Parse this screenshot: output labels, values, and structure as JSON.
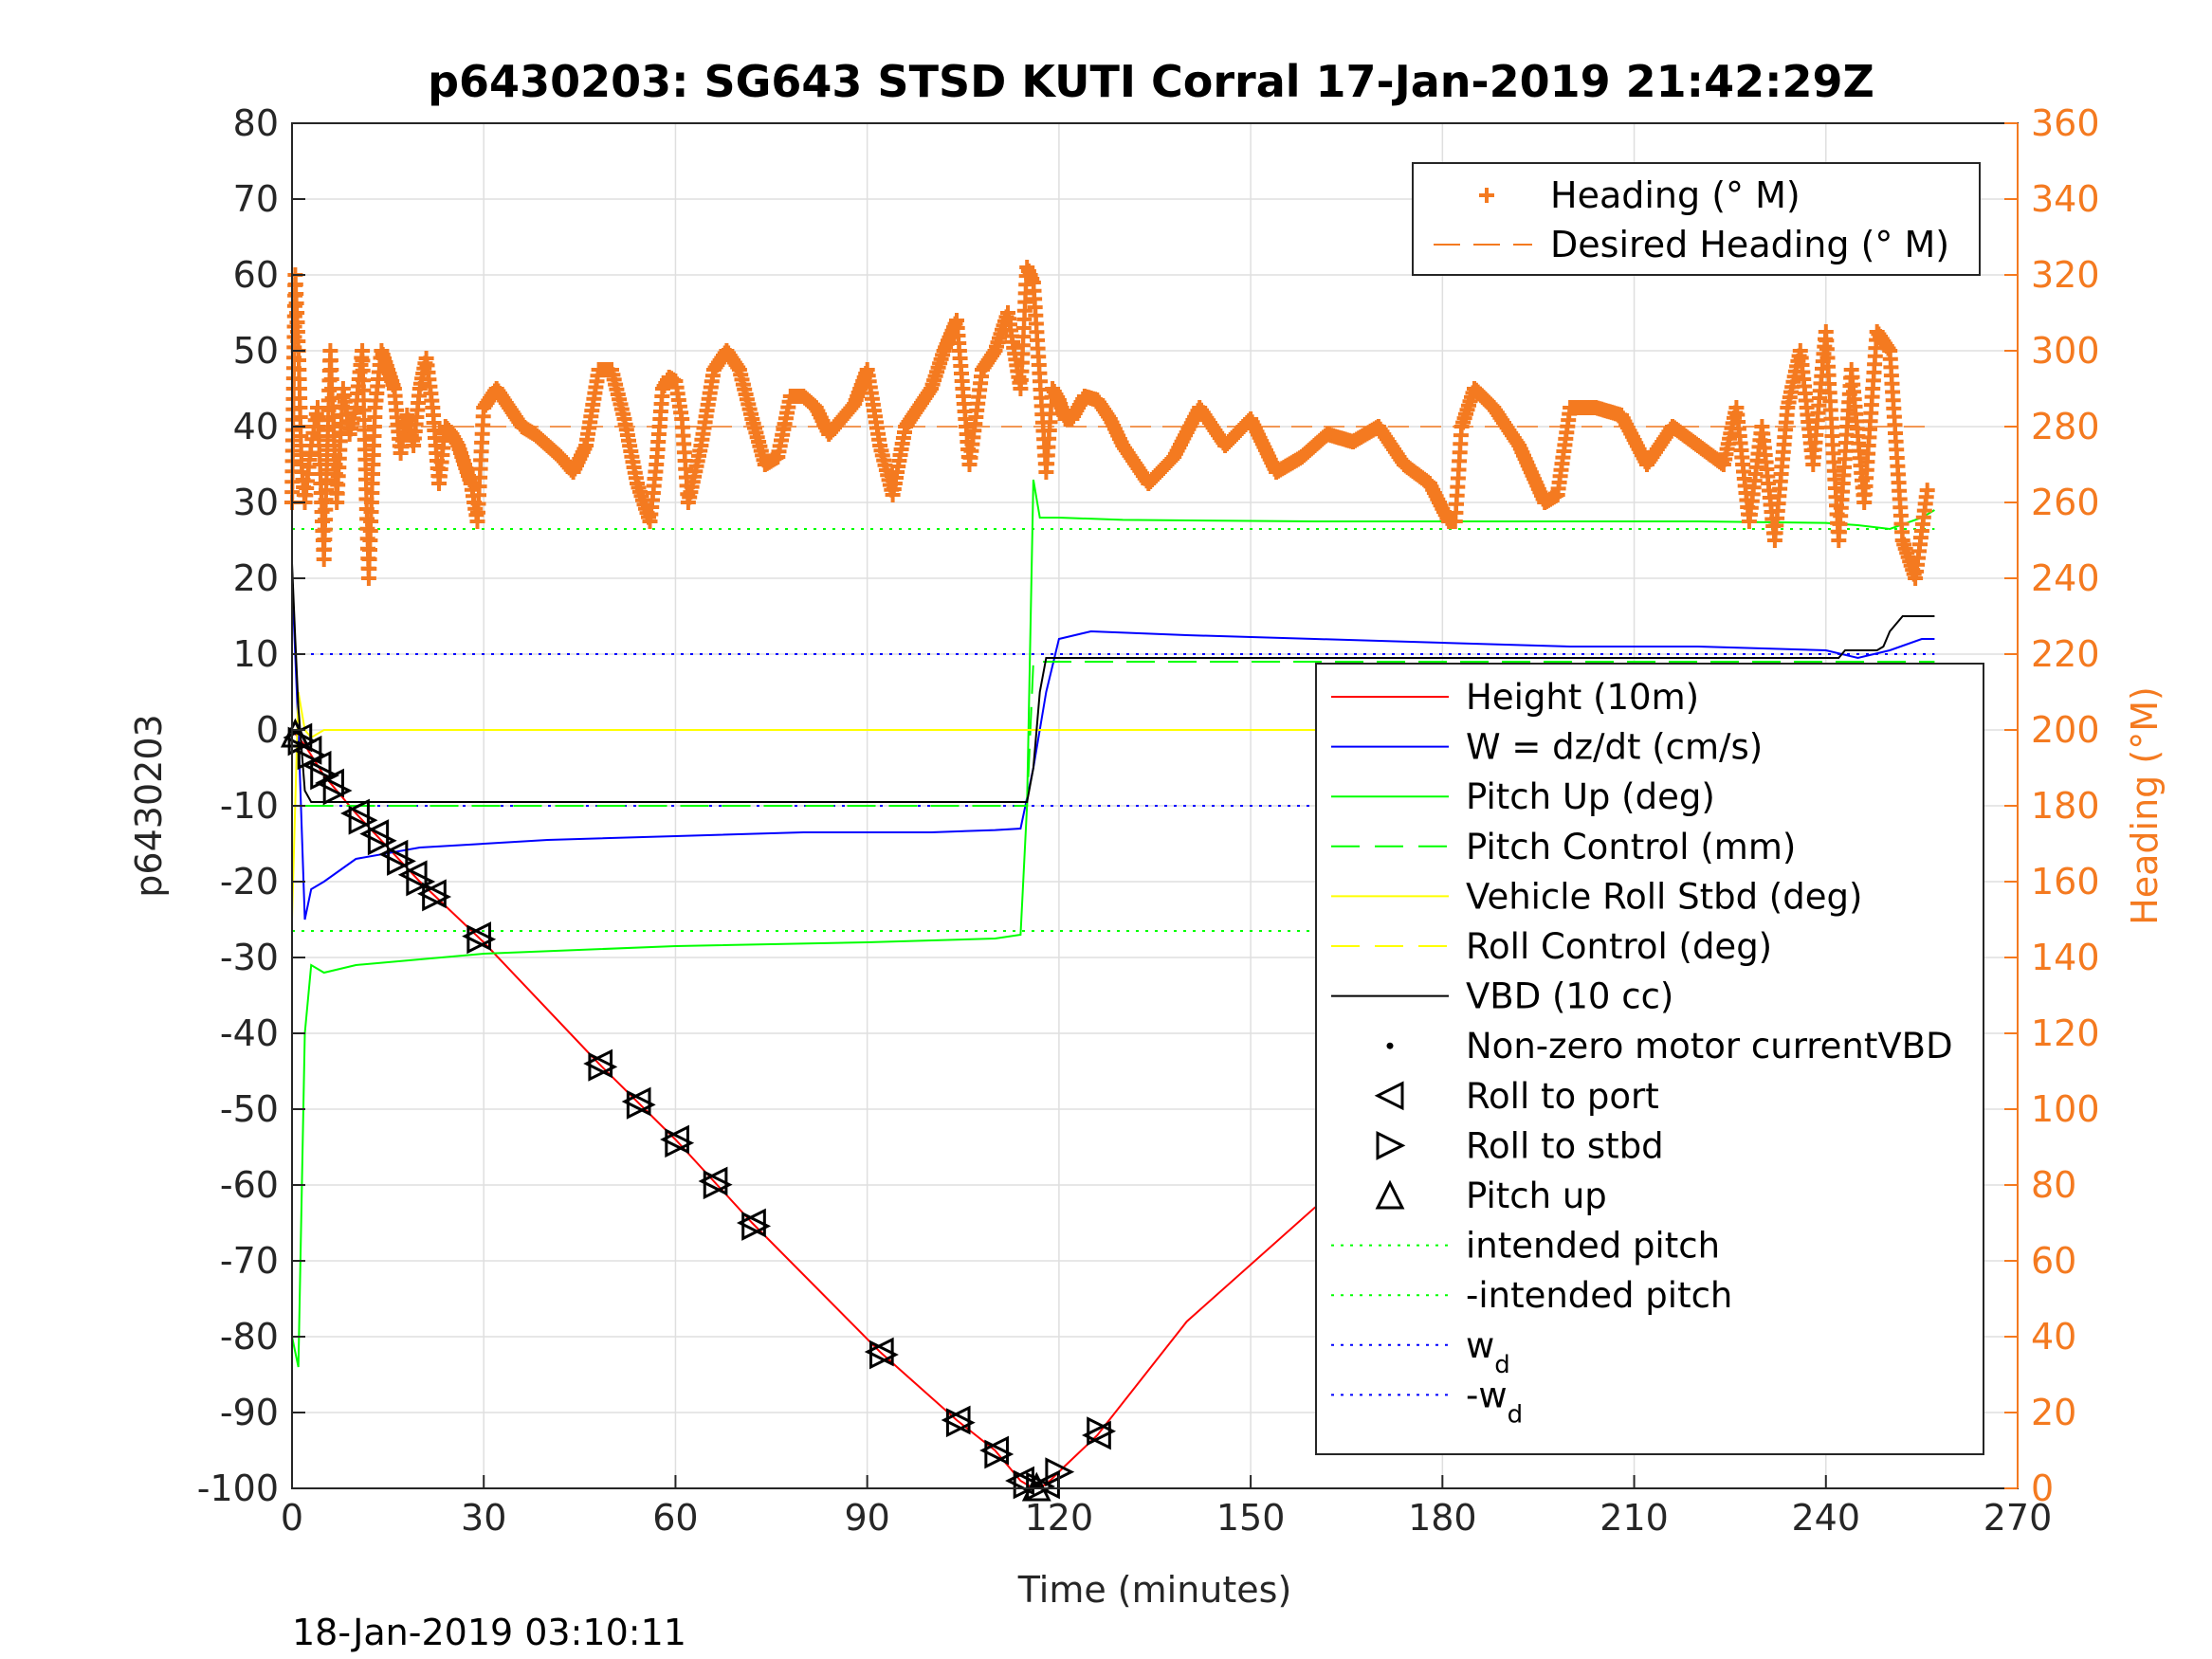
{
  "chart_data": {
    "type": "line",
    "title": "p6430203: SG643 STSD KUTI Corral 17-Jan-2019 21:42:29Z",
    "xlabel": "Time (minutes)",
    "ylabel": "p6430203",
    "ylabel_right": "Heading (°M)",
    "footer": "18-Jan-2019 03:10:11",
    "xlim": [
      0,
      270
    ],
    "ylim": [
      -100,
      80
    ],
    "ylim_right": [
      0,
      360
    ],
    "x_ticks": [
      0,
      30,
      60,
      90,
      120,
      150,
      180,
      210,
      240,
      270
    ],
    "y_ticks": [
      -100,
      -90,
      -80,
      -70,
      -60,
      -50,
      -40,
      -30,
      -20,
      -10,
      0,
      10,
      20,
      30,
      40,
      50,
      60,
      70,
      80
    ],
    "y_ticks_right": [
      0,
      20,
      40,
      60,
      80,
      100,
      120,
      140,
      160,
      180,
      200,
      220,
      240,
      260,
      280,
      300,
      320,
      340,
      360
    ],
    "grid": true,
    "legend_heading": {
      "placement": "top-right",
      "entries": [
        "Heading (° M)",
        "Desired Heading (° M)"
      ]
    },
    "legend_main": {
      "placement": "right",
      "entries": [
        {
          "label": "Height (10m)",
          "sub": "",
          "color": "#ff0000",
          "style": "solid"
        },
        {
          "label": "W = dz/dt (cm/s)",
          "sub": "",
          "color": "#0000ff",
          "style": "solid"
        },
        {
          "label": "Pitch Up (deg)",
          "sub": "",
          "color": "#00ff00",
          "style": "solid"
        },
        {
          "label": "Pitch Control (mm)",
          "sub": "",
          "color": "#00ff00",
          "style": "dashed"
        },
        {
          "label": "Vehicle Roll Stbd (deg)",
          "sub": "",
          "color": "#ffff00",
          "style": "solid"
        },
        {
          "label": "Roll Control (deg)",
          "sub": "",
          "color": "#ffff00",
          "style": "dashed"
        },
        {
          "label": "VBD (10 cc)",
          "sub": "",
          "color": "#000000",
          "style": "solid"
        },
        {
          "label": "Non-zero motor currentVBD",
          "sub": "",
          "color": "#000000",
          "style": "dot"
        },
        {
          "label": "Roll to port",
          "sub": "",
          "color": "#000000",
          "style": "tri-left"
        },
        {
          "label": "Roll to stbd",
          "sub": "",
          "color": "#000000",
          "style": "tri-right"
        },
        {
          "label": "Pitch up",
          "sub": "",
          "color": "#000000",
          "style": "tri-up"
        },
        {
          "label": "intended pitch",
          "sub": "",
          "color": "#00ff00",
          "style": "dotted"
        },
        {
          "label": "-intended pitch",
          "sub": "",
          "color": "#00ff00",
          "style": "dotted"
        },
        {
          "label": "w",
          "sub": "d",
          "color": "#0000ff",
          "style": "dotted"
        },
        {
          "label": "-w",
          "sub": "d",
          "color": "#0000ff",
          "style": "dotted"
        }
      ]
    },
    "reference_lines": {
      "intended_pitch": 26.5,
      "neg_intended_pitch": -26.5,
      "w_d": 10,
      "neg_w_d": -10,
      "desired_heading": 280
    },
    "series": [
      {
        "name": "Height (10m)",
        "color": "#ff0000",
        "x": [
          0,
          2,
          5,
          10,
          20,
          30,
          48,
          60,
          72,
          92,
          104,
          110,
          114,
          116,
          118,
          121,
          126,
          140,
          160,
          183,
          199,
          224,
          231,
          240,
          250,
          257
        ],
        "y": [
          0,
          -2,
          -6,
          -11,
          -20,
          -28,
          -44,
          -54,
          -65,
          -82,
          -91,
          -95,
          -99,
          -100,
          -99.5,
          -97,
          -93,
          -78,
          -63,
          -50,
          -38,
          -21,
          -17,
          -10,
          -5,
          0
        ]
      },
      {
        "name": "W = dz/dt (cm/s)",
        "color": "#0000ff",
        "x": [
          0,
          1,
          2,
          3,
          5,
          10,
          20,
          40,
          60,
          80,
          100,
          110,
          114,
          116,
          118,
          120,
          125,
          140,
          160,
          180,
          200,
          220,
          240,
          245,
          250,
          255,
          257
        ],
        "y": [
          20,
          0,
          -25,
          -21,
          -20,
          -17,
          -15.5,
          -14.5,
          -14,
          -13.5,
          -13.5,
          -13.2,
          -13,
          -5,
          5,
          12,
          13,
          12.5,
          12,
          11.5,
          11,
          11,
          10.5,
          9.5,
          10.5,
          12,
          12
        ]
      },
      {
        "name": "Pitch Up (deg)",
        "color": "#00ff00",
        "x": [
          0,
          1,
          2,
          3,
          5,
          10,
          30,
          60,
          90,
          110,
          114,
          115,
          116,
          117,
          120,
          130,
          160,
          190,
          220,
          240,
          245,
          250,
          255,
          257
        ],
        "y": [
          -80,
          -84,
          -40,
          -31,
          -32,
          -31,
          -29.5,
          -28.5,
          -28,
          -27.5,
          -27,
          -10,
          33,
          28,
          28,
          27.7,
          27.5,
          27.5,
          27.5,
          27.3,
          27,
          26.5,
          28,
          29
        ]
      },
      {
        "name": "Pitch Control (mm)",
        "color": "#00ff00",
        "x": [
          2,
          115,
          116,
          257
        ],
        "y": [
          -10,
          -10,
          9,
          9
        ]
      },
      {
        "name": "Vehicle Roll Stbd (deg)",
        "color": "#ffff00",
        "x": [
          0,
          1,
          2,
          3,
          5,
          10,
          40,
          60,
          80,
          100,
          116,
          118,
          120,
          150,
          180,
          210,
          240,
          245,
          250,
          255,
          257
        ],
        "y": [
          -25,
          5,
          0,
          -1,
          0,
          0,
          0,
          0,
          0,
          0,
          0,
          0,
          0,
          0,
          0,
          0,
          0,
          -2,
          2,
          5,
          5
        ]
      },
      {
        "name": "VBD (10 cc)",
        "color": "#000000",
        "x": [
          0,
          0.5,
          1,
          2,
          3,
          115,
          116,
          117,
          118,
          242,
          243,
          248,
          249,
          250,
          252,
          257
        ],
        "y": [
          22,
          12,
          3,
          -8,
          -9.5,
          -9.5,
          -5,
          5,
          9.5,
          9.5,
          10.5,
          10.5,
          11,
          13,
          15,
          15
        ]
      }
    ],
    "markers": {
      "roll_to_port_x": [
        1,
        2.5,
        4,
        6,
        10,
        13,
        16,
        19,
        22,
        29,
        48,
        54,
        60,
        66,
        72,
        92,
        104,
        110,
        114,
        118,
        126,
        183,
        199,
        224,
        230,
        235,
        240,
        243,
        247,
        250,
        253
      ],
      "roll_to_stbd_x": [
        1.5,
        3,
        5,
        7,
        11,
        14,
        17,
        20,
        22.5,
        29.5,
        48.5,
        54.5,
        60.5,
        66.5,
        72.5,
        92.5,
        104.5,
        110.5,
        115,
        117,
        120,
        126.5,
        183.5,
        199.5,
        224.5,
        231,
        236,
        241,
        244,
        248,
        251,
        254
      ],
      "pitch_up_x": [
        0.5,
        116.5
      ]
    },
    "heading": {
      "name": "Heading (° M)",
      "color": "#f47a20",
      "x": [
        0,
        0.5,
        1,
        1.5,
        2,
        3,
        4,
        5,
        6,
        7,
        8,
        9,
        10,
        11,
        12,
        13,
        14,
        15,
        16,
        17,
        18,
        19,
        20,
        21,
        22,
        23,
        24,
        25,
        26,
        27,
        28,
        29,
        30,
        32,
        34,
        36,
        38,
        40,
        42,
        44,
        46,
        48,
        50,
        52,
        54,
        56,
        57,
        58,
        59,
        60,
        61,
        62,
        64,
        66,
        68,
        70,
        72,
        74,
        76,
        78,
        80,
        82,
        84,
        86,
        88,
        90,
        92,
        94,
        96,
        98,
        100,
        102,
        104,
        106,
        108,
        110,
        112,
        114,
        115,
        116,
        118,
        119,
        120,
        121,
        122,
        124,
        126,
        128,
        130,
        134,
        138,
        142,
        146,
        150,
        154,
        158,
        162,
        166,
        170,
        174,
        178,
        181,
        182,
        183,
        185,
        188,
        192,
        196,
        198,
        200,
        204,
        208,
        212,
        216,
        220,
        224,
        226,
        228,
        230,
        232,
        234,
        236,
        238,
        240,
        242,
        244,
        246,
        248,
        250,
        252,
        254,
        256
      ],
      "y": [
        260,
        320,
        300,
        270,
        260,
        275,
        285,
        245,
        300,
        260,
        290,
        278,
        285,
        300,
        240,
        285,
        300,
        295,
        290,
        273,
        283,
        275,
        290,
        298,
        285,
        265,
        280,
        278,
        275,
        270,
        265,
        255,
        285,
        290,
        285,
        280,
        278,
        275,
        272,
        268,
        275,
        295,
        295,
        282,
        265,
        255,
        270,
        290,
        293,
        292,
        282,
        260,
        275,
        295,
        300,
        295,
        282,
        270,
        272,
        288,
        288,
        285,
        278,
        282,
        286,
        295,
        275,
        262,
        280,
        285,
        290,
        300,
        308,
        270,
        295,
        300,
        310,
        290,
        322,
        318,
        268,
        290,
        287,
        282,
        282,
        288,
        287,
        282,
        275,
        265,
        272,
        285,
        275,
        282,
        268,
        272,
        278,
        276,
        280,
        270,
        265,
        255,
        255,
        280,
        290,
        285,
        275,
        260,
        262,
        285,
        285,
        283,
        270,
        280,
        275,
        270,
        285,
        255,
        280,
        250,
        285,
        300,
        270,
        305,
        250,
        295,
        260,
        305,
        300,
        250,
        240,
        265
      ]
    }
  }
}
